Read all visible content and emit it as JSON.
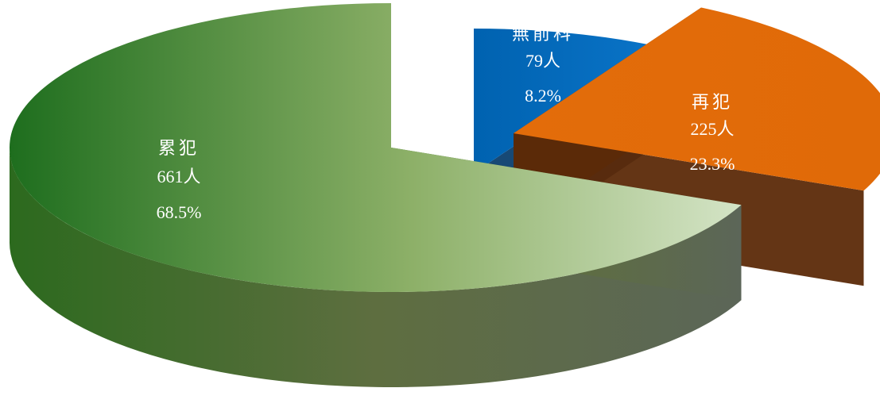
{
  "chart_data": {
    "type": "pie",
    "style": "3d-exploded",
    "slices": [
      {
        "name": "無前科",
        "count_label": "79人",
        "value": 79,
        "percent_label": "8.2%",
        "percent": 8.2,
        "color": "#0070C0",
        "side_color": "#0B3F6E"
      },
      {
        "name": "再犯",
        "count_label": "225人",
        "value": 225,
        "percent_label": "23.3%",
        "percent": 23.3,
        "color": "#E36C0A",
        "side_color": "#5C2A08"
      },
      {
        "name": "累犯",
        "count_label": "661人",
        "value": 661,
        "percent_label": "68.5%",
        "percent": 68.5,
        "color": "#6A9A40",
        "side_color": "#4E5A3C",
        "gradient": [
          "#1E6E1E",
          "#8DB068",
          "#C5D9B5"
        ]
      }
    ]
  }
}
